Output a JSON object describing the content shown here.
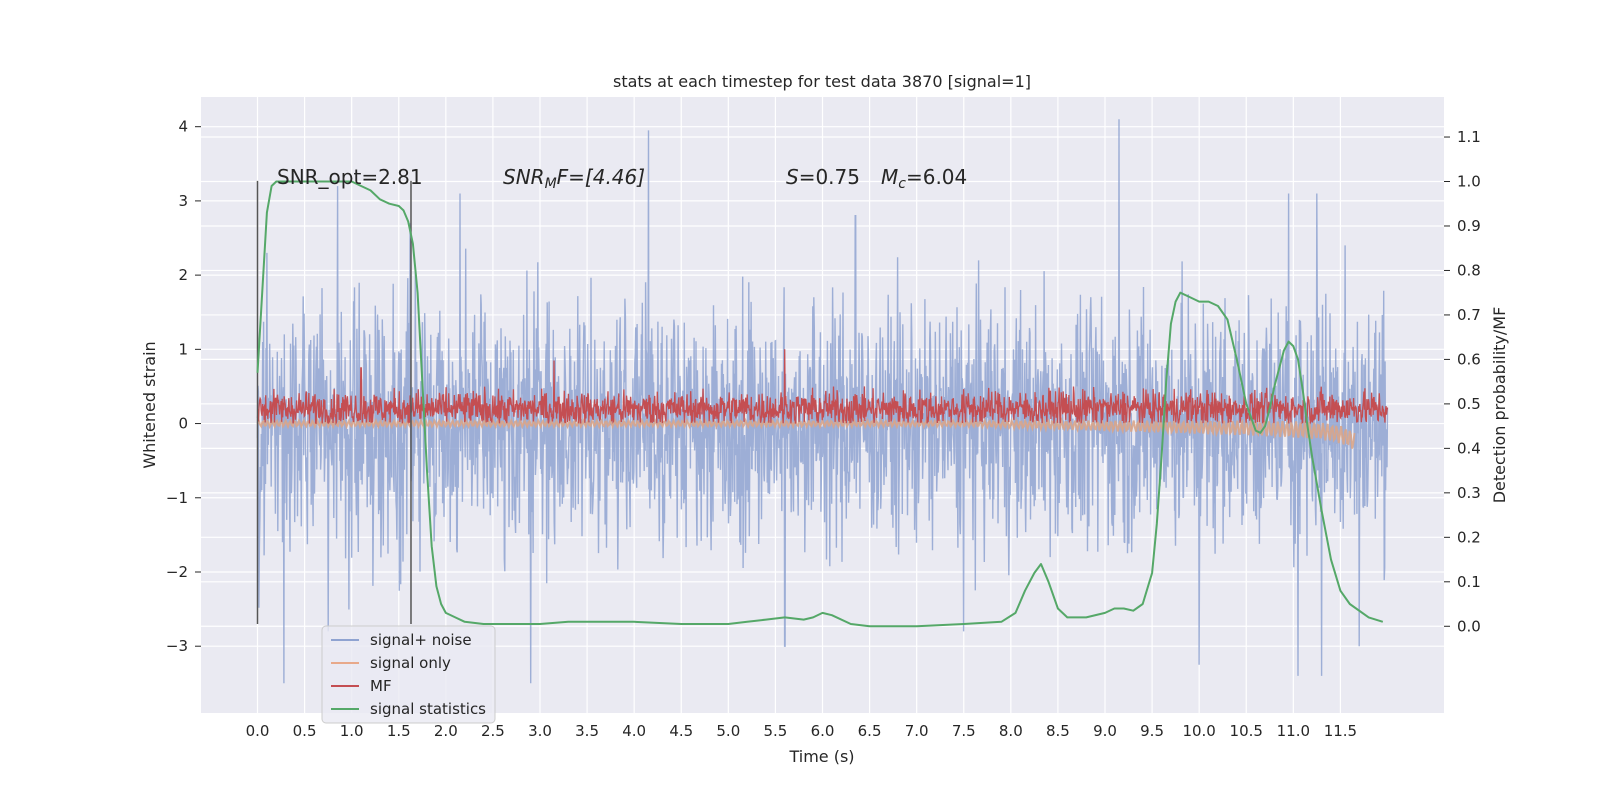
{
  "chart_data": {
    "type": "line",
    "title": "stats at each timestep for test data 3870 [signal=1]",
    "xlabel": "Time (s)",
    "ylabel": "Whitened strain",
    "y2label": "Detection probability/MF",
    "xlim": [
      -0.6,
      12.6
    ],
    "ylim": [
      -3.9,
      4.4
    ],
    "y2lim": [
      -0.195,
      1.19
    ],
    "xticks": [
      "0.0",
      "0.5",
      "1.0",
      "1.5",
      "2.0",
      "2.5",
      "3.0",
      "3.5",
      "4.0",
      "4.5",
      "5.0",
      "5.5",
      "6.0",
      "6.5",
      "7.0",
      "7.5",
      "8.0",
      "8.5",
      "9.0",
      "9.5",
      "10.0",
      "10.5",
      "11.0",
      "11.5"
    ],
    "yticks": [
      4,
      3,
      2,
      1,
      0,
      -1,
      -2,
      -3
    ],
    "yticklabels": [
      "4",
      "3",
      "2",
      "1",
      "0",
      "−1",
      "−2",
      "−3"
    ],
    "y2ticks": [
      1.1,
      1.0,
      0.9,
      0.8,
      0.7,
      0.6,
      0.5,
      0.4,
      0.3,
      0.2,
      0.1,
      0.0
    ],
    "y2ticklabels": [
      "1.1",
      "1.0",
      "0.9",
      "0.8",
      "0.7",
      "0.6",
      "0.5",
      "0.4",
      "0.3",
      "0.2",
      "0.1",
      "0.0"
    ],
    "grid": true,
    "legend_position": "lower-left",
    "annotations": {
      "snr_opt": "SNR_opt=2.81",
      "snr_mf_main": "SNR",
      "snr_mf_sub": "M",
      "snr_mf_rest": "F=[4.46]",
      "s_sym": "S",
      "s_val": "=0.75",
      "mc_sym": "M",
      "mc_sub": "c",
      "mc_val": "=6.04"
    },
    "vlines": [
      0.0,
      1.63
    ],
    "series": [
      {
        "name": "signal+ noise",
        "color": "#8fa3d1",
        "axis": "left",
        "x_range": [
          0.0,
          12.0
        ],
        "typical_amplitude": 1.5,
        "peaks": [
          [
            0.1,
            2.3
          ],
          [
            0.85,
            3.2
          ],
          [
            1.62,
            2.7
          ],
          [
            2.15,
            3.1
          ],
          [
            4.15,
            3.95
          ],
          [
            6.35,
            2.8
          ],
          [
            9.15,
            4.1
          ],
          [
            10.95,
            3.1
          ],
          [
            11.25,
            3.1
          ],
          [
            11.55,
            2.4
          ]
        ],
        "troughs": [
          [
            0.28,
            -3.5
          ],
          [
            0.75,
            -2.8
          ],
          [
            2.9,
            -3.5
          ],
          [
            5.6,
            -3.0
          ],
          [
            7.5,
            -2.8
          ],
          [
            10.0,
            -3.25
          ],
          [
            11.05,
            -3.4
          ],
          [
            11.3,
            -3.4
          ],
          [
            11.7,
            -3.0
          ]
        ]
      },
      {
        "name": "signal only",
        "color": "#dd8452",
        "axis": "left",
        "x": [
          0.0,
          7.5,
          8.0,
          9.0,
          10.0,
          10.5,
          11.0,
          11.3,
          11.5,
          11.6,
          11.65
        ],
        "y": [
          0.0,
          0.0,
          -0.01,
          -0.03,
          -0.05,
          -0.06,
          -0.08,
          -0.1,
          -0.15,
          -0.2,
          -0.25
        ]
      },
      {
        "name": "MF",
        "color": "#c44e52",
        "axis": "left",
        "x_range": [
          0.0,
          12.0
        ],
        "baseline": 0.2,
        "typical_high": 0.5,
        "typical_low": 0.0,
        "peaks": [
          [
            5.6,
            1.0
          ],
          [
            3.15,
            0.85
          ],
          [
            1.1,
            0.75
          ]
        ]
      },
      {
        "name": "signal statistics",
        "color": "#55a868",
        "axis": "right",
        "x": [
          0.0,
          0.05,
          0.1,
          0.15,
          0.2,
          0.3,
          0.5,
          0.8,
          1.0,
          1.1,
          1.2,
          1.3,
          1.4,
          1.5,
          1.55,
          1.6,
          1.65,
          1.7,
          1.75,
          1.8,
          1.85,
          1.9,
          1.95,
          2.0,
          2.1,
          2.2,
          2.4,
          2.7,
          3.0,
          3.3,
          3.6,
          4.0,
          4.5,
          5.0,
          5.2,
          5.4,
          5.6,
          5.8,
          5.9,
          6.0,
          6.1,
          6.3,
          6.5,
          7.0,
          7.5,
          7.9,
          8.05,
          8.15,
          8.25,
          8.32,
          8.4,
          8.5,
          8.6,
          8.8,
          9.0,
          9.1,
          9.2,
          9.3,
          9.4,
          9.5,
          9.55,
          9.6,
          9.65,
          9.7,
          9.75,
          9.8,
          9.9,
          10.0,
          10.1,
          10.2,
          10.3,
          10.4,
          10.5,
          10.6,
          10.65,
          10.7,
          10.75,
          10.8,
          10.85,
          10.9,
          10.95,
          11.0,
          11.05,
          11.1,
          11.15,
          11.2,
          11.3,
          11.4,
          11.5,
          11.6,
          11.8,
          11.95
        ],
        "y": [
          0.57,
          0.75,
          0.93,
          0.99,
          1.0,
          1.0,
          1.0,
          1.0,
          1.0,
          0.99,
          0.98,
          0.96,
          0.95,
          0.945,
          0.935,
          0.91,
          0.86,
          0.75,
          0.55,
          0.35,
          0.18,
          0.09,
          0.05,
          0.03,
          0.02,
          0.01,
          0.005,
          0.005,
          0.005,
          0.01,
          0.01,
          0.01,
          0.005,
          0.005,
          0.01,
          0.015,
          0.02,
          0.015,
          0.02,
          0.03,
          0.025,
          0.005,
          0.0,
          0.0,
          0.005,
          0.01,
          0.03,
          0.08,
          0.12,
          0.14,
          0.1,
          0.04,
          0.02,
          0.02,
          0.03,
          0.04,
          0.04,
          0.035,
          0.05,
          0.12,
          0.23,
          0.38,
          0.55,
          0.68,
          0.73,
          0.75,
          0.74,
          0.73,
          0.73,
          0.72,
          0.69,
          0.6,
          0.5,
          0.44,
          0.435,
          0.45,
          0.49,
          0.54,
          0.58,
          0.62,
          0.64,
          0.63,
          0.6,
          0.53,
          0.45,
          0.38,
          0.26,
          0.15,
          0.08,
          0.05,
          0.02,
          0.01
        ]
      }
    ]
  }
}
